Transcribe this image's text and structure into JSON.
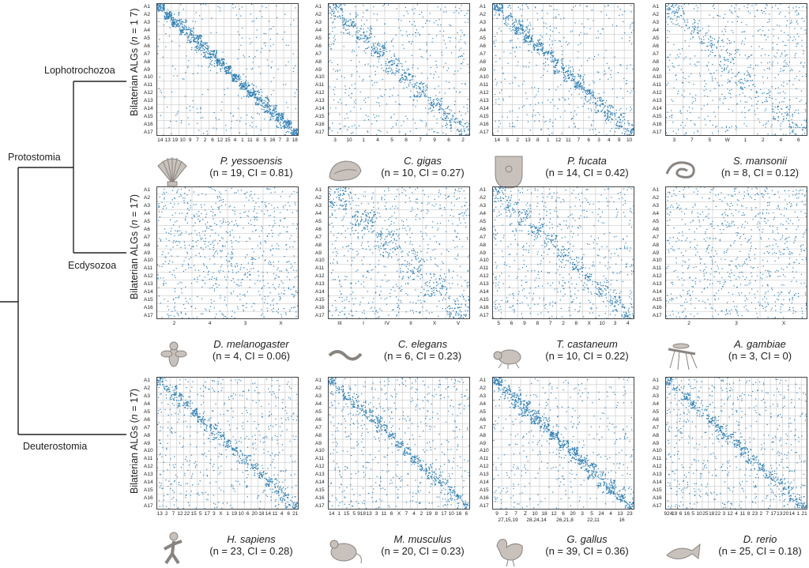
{
  "clades": {
    "lophotrochozoa": "Lophotrochozoa",
    "protostomia": "Protostomia",
    "ecdysozoa": "Ecdysozoa",
    "deuterostomia": "Deuterostomia"
  },
  "row_labels": {
    "prefix": "Bilaterian ALGs (",
    "n": "n",
    "lophotrochozoa_suffix": " = 1 7)",
    "suffix": " = 17)"
  },
  "algs": [
    "A1",
    "A2",
    "A3",
    "A4",
    "A5",
    "A6",
    "A7",
    "A8",
    "A9",
    "A10",
    "A11",
    "A12",
    "A13",
    "A14",
    "A15",
    "A16",
    "A17"
  ],
  "colors": {
    "dot": "#2b7fb8",
    "grid": "#bdbdbd",
    "animal": "#c9c2bc",
    "animal_stroke": "#8a8480",
    "tree": "#222222"
  },
  "panels": [
    {
      "species": "P. yessoensis",
      "stats": "(n = 19, CI = 0.81)",
      "icon": "scallop-icon",
      "density": 0.2,
      "diag": 0.95,
      "cols": [
        "14",
        "13",
        "19",
        "10",
        "9",
        "7",
        "2",
        "6",
        "12",
        "15",
        "4",
        "1",
        "11",
        "8",
        "5",
        "16",
        "7",
        "3",
        "18"
      ]
    },
    {
      "species": "C. gigas",
      "stats": "(n = 10, CI = 0.27)",
      "icon": "oyster-icon",
      "density": 0.35,
      "diag": 0.45,
      "cols": [
        "3",
        "10",
        "1",
        "4",
        "5",
        "8",
        "7",
        "9",
        "6",
        "2"
      ]
    },
    {
      "species": "P. fucata",
      "stats": "(n = 14, CI = 0.42)",
      "icon": "pearl-oyster-icon",
      "density": 0.3,
      "diag": 0.6,
      "cols": [
        "14",
        "5",
        "2",
        "13",
        "8",
        "1",
        "12",
        "11",
        "7",
        "6",
        "3",
        "4",
        "9",
        "10"
      ]
    },
    {
      "species": "S. mansonii",
      "stats": "(n = 8, CI = 0.12)",
      "icon": "worm-icon",
      "density": 0.45,
      "diag": 0.2,
      "cols": [
        "3",
        "7",
        "5",
        "W",
        "1",
        "2",
        "4",
        "6"
      ]
    },
    {
      "species": "D. melanogaster",
      "stats": "(n = 4, CI = 0.06)",
      "icon": "fly-icon",
      "density": 0.55,
      "diag": 0.05,
      "cols": [
        "2",
        "4",
        "3",
        "X"
      ]
    },
    {
      "species": "C. elegans",
      "stats": "(n = 6, CI = 0.23)",
      "icon": "nematode-icon",
      "density": 0.45,
      "diag": 0.35,
      "cols": [
        "III",
        "I",
        "IV",
        "II",
        "X",
        "V"
      ]
    },
    {
      "species": "T. castaneum",
      "stats": "(n = 10, CI = 0.22)",
      "icon": "beetle-icon",
      "density": 0.45,
      "diag": 0.35,
      "cols": [
        "5",
        "6",
        "9",
        "8",
        "7",
        "2",
        "8",
        "X",
        "10",
        "3",
        "4"
      ]
    },
    {
      "species": "A. gambiae",
      "stats": "(n = 3, CI = 0)",
      "icon": "mosquito-icon",
      "density": 0.6,
      "diag": 0.0,
      "cols": [
        "2",
        "3",
        "X"
      ]
    },
    {
      "species": "H. sapiens",
      "stats": "(n = 23, CI = 0.28)",
      "icon": "human-icon",
      "density": 0.4,
      "diag": 0.45,
      "cols": [
        "13",
        "2",
        "7",
        "12",
        "22",
        "15",
        "5",
        "17",
        "3",
        "X",
        "1",
        "19",
        "10",
        "6",
        "20",
        "18",
        "14",
        "11",
        "4",
        "6",
        "21"
      ]
    },
    {
      "species": "M. musculus",
      "stats": "(n = 20, CI = 0.23)",
      "icon": "mouse-icon",
      "density": 0.4,
      "diag": 0.45,
      "cols": [
        "14",
        "1",
        "15",
        "5",
        "918",
        "13",
        "3",
        "11",
        "6",
        "X",
        "7",
        "4",
        "2",
        "19",
        "8",
        "17",
        "10",
        "16",
        "6"
      ]
    },
    {
      "species": "G. gallus",
      "stats": "(n = 39, CI = 0.36)",
      "icon": "chicken-icon",
      "density": 0.3,
      "diag": 0.7,
      "cols": [
        "9",
        "2",
        "7",
        "Z",
        "10",
        "18",
        "12",
        "6",
        "20",
        "3",
        "5",
        "24",
        "4",
        "13",
        "23"
      ],
      "cols2": [
        "27,15,19",
        "28,24,14",
        "26,21,8",
        "22,11",
        "16"
      ]
    },
    {
      "species": "D. rerio",
      "stats": "(n = 25, CI = 0.18)",
      "icon": "fish-icon",
      "density": 0.45,
      "diag": 0.4,
      "cols": [
        "924",
        "19",
        "6",
        "16",
        "5",
        "10",
        "25",
        "18",
        "22",
        "3",
        "12",
        "4",
        "11",
        "8",
        "23",
        "2",
        "7",
        "17",
        "13",
        "20",
        "14",
        "1",
        "21"
      ]
    }
  ]
}
